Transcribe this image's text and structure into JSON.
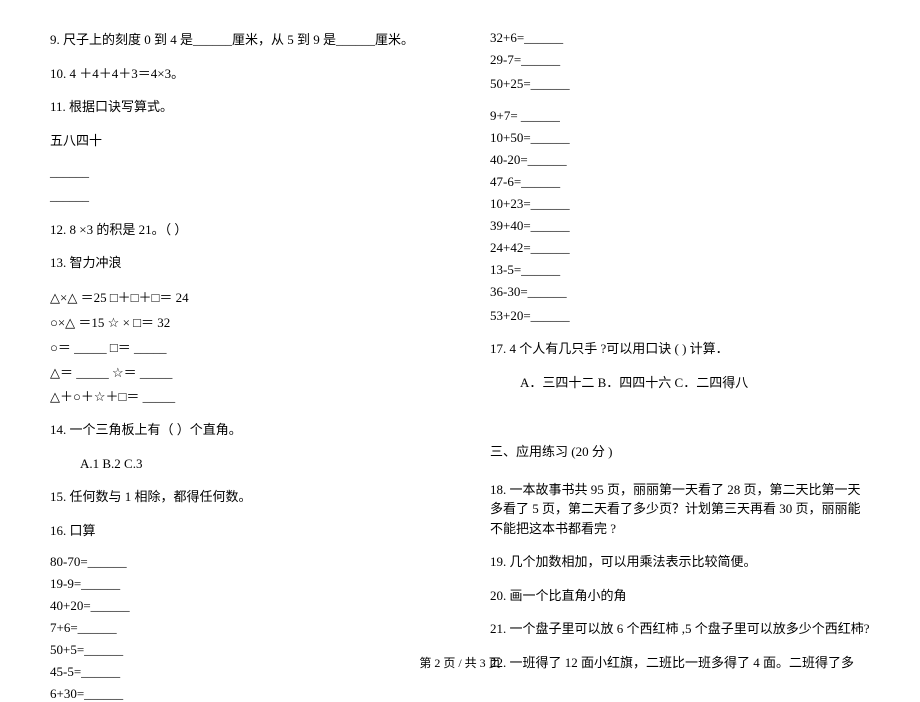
{
  "leftCol": {
    "q9": "9.  尺子上的刻度  0 到 4 是______厘米，从 5 到 9 是______厘米。",
    "q10": "10. 4 ＋4＋4＋3＝4×3。",
    "q11": "11.  根据口诀写算式。",
    "q11sub": "五八四十",
    "blank1": "______",
    "blank2": "______",
    "q12": "12. 8 ×3 的积是 21。（ ）",
    "q13": "13.  智力冲浪",
    "q13l1": "△×△ ＝25 □＋□＋□＝ 24",
    "q13l2": "○×△ ＝15 ☆ × □＝ 32",
    "q13l3": "○＝ _____ □＝ _____",
    "q13l4": "△＝ _____ ☆＝ _____",
    "q13l5": "△＋○＋☆＋□＝ _____",
    "q14": "14.  一个三角板上有（   ）个直角。",
    "q14opts": "A.1       B.2       C.3",
    "q15": "15.  任何数与 1 相除，都得任何数。",
    "q16": "16.  口算",
    "calc1": "80-70=______",
    "calc2": "19-9=______",
    "calc3": "40+20=______",
    "calc4": "7+6=______",
    "calc5": "50+5=______",
    "calc6": "45-5=______",
    "calc7": "6+30=______"
  },
  "rightCol": {
    "calc8": "32+6=______",
    "calc9": "29-7=______",
    "calc10": "50+25=______",
    "calc11": "9+7= ______",
    "calc12": "10+50=______",
    "calc13": "40-20=______",
    "calc14": "47-6=______",
    "calc15": "10+23=______",
    "calc16": "39+40=______",
    "calc17": "24+42=______",
    "calc18": "13-5=______",
    "calc19": "36-30=______",
    "calc20": "53+20=______",
    "q17": "17. 4  个人有几只手 ?可以用口诀 (           ) 计算．",
    "q17opts": "A．三四十二     B．四四十六     C．二四得八",
    "section3": "三、应用练习   (20 分 )",
    "q18": "18.  一本故事书共  95 页，丽丽第一天看了  28 页，第二天比第一天多看了 5 页，第二天看了多少页？计划第三天再看 30 页，丽丽能不能把这本书都看完 ?",
    "q19": "19.  几个加数相加，可以用乘法表示比较简便。",
    "q20": "20.  画一个比直角小的角",
    "q21": "21.  一个盘子里可以放  6 个西红柿 ,5 个盘子里可以放多少个西红柿?",
    "q22": "22.  一班得了 12 面小红旗，二班比一班多得了  4 面。二班得了多"
  },
  "footer": "第 2 页     / 共 3 页"
}
